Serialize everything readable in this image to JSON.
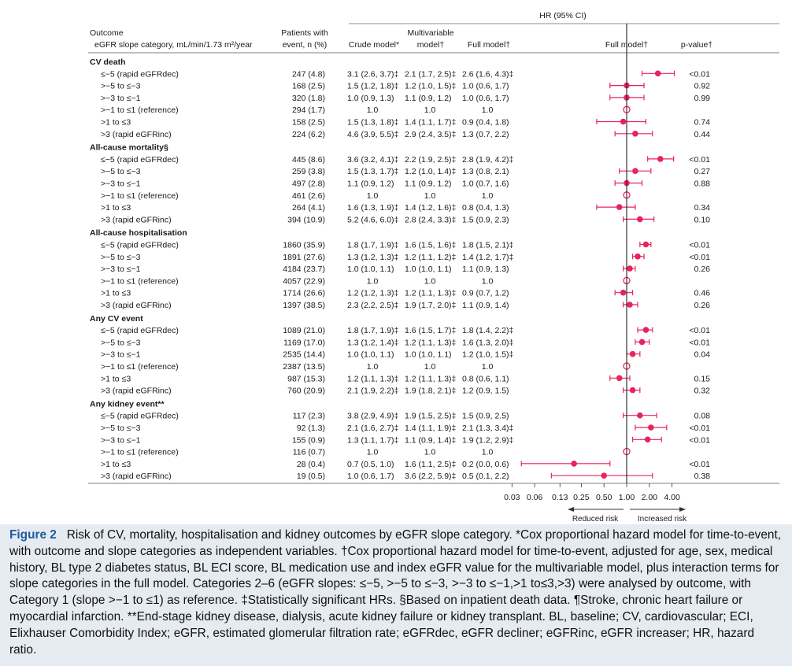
{
  "chart_data": {
    "type": "forest",
    "headers": {
      "outcome": "Outcome",
      "category": "eGFR slope category, mL/min/1.73 m²/year",
      "patients": [
        "Patients with",
        "event, n (%)"
      ],
      "hr_group": "HR (95% CI)",
      "crude": "Crude model*",
      "multivariable": [
        "Multivariable",
        "model†"
      ],
      "full": "Full model†",
      "plot": "Full model†",
      "pvalue": "p-value†"
    },
    "x_axis": {
      "scale": "log",
      "ticks": [
        0.03,
        0.06,
        0.13,
        0.25,
        0.5,
        1.0,
        2.0,
        4.0
      ],
      "tick_labels": [
        "0.03",
        "0.06",
        "0.13",
        "0.25",
        "0.50",
        "1.00",
        "2.00",
        "4.00"
      ],
      "xlim": [
        0.03,
        5.6
      ],
      "reference": 1.0,
      "left_label": "Reduced risk",
      "right_label": "Increased risk"
    },
    "marker_color": "#e8245c",
    "groups": [
      {
        "name": "CV death",
        "rows": [
          {
            "label": "≤−5 (rapid eGFRdec)",
            "n": "247 (4.8)",
            "crude": "3.1 (2.6, 3.7)‡",
            "multi": "2.1 (1.7, 2.5)‡",
            "full": "2.6 (1.6, 4.3)‡",
            "hr": 2.6,
            "lo": 1.6,
            "hi": 4.3,
            "p": "<0.01"
          },
          {
            "label": ">−5 to ≤−3",
            "n": "168 (2.5)",
            "crude": "1.5 (1.2, 1.8)‡",
            "multi": "1.2 (1.0, 1.5)‡",
            "full": "1.0 (0.6, 1.7)",
            "hr": 1.0,
            "lo": 0.6,
            "hi": 1.7,
            "p": "0.92"
          },
          {
            "label": ">−3 to ≤−1",
            "n": "320 (1.8)",
            "crude": "1.0 (0.9, 1.3)",
            "multi": "1.1 (0.9, 1.2)",
            "full": "1.0 (0.6, 1.7)",
            "hr": 1.0,
            "lo": 0.6,
            "hi": 1.7,
            "p": "0.99"
          },
          {
            "label": ">−1 to ≤1 (reference)",
            "n": "294 (1.7)",
            "crude": "1.0",
            "multi": "1.0",
            "full": "1.0",
            "hr": 1.0,
            "ref": true,
            "p": ""
          },
          {
            "label": ">1 to ≤3",
            "n": "158 (2.5)",
            "crude": "1.5 (1.3, 1.8)‡",
            "multi": "1.4 (1.1, 1.7)‡",
            "full": "0.9 (0.4, 1.8)",
            "hr": 0.9,
            "lo": 0.4,
            "hi": 1.8,
            "p": "0.74"
          },
          {
            "label": ">3 (rapid eGFRinc)",
            "n": "224 (6.2)",
            "crude": "4.6 (3.9, 5.5)‡",
            "multi": "2.9 (2.4, 3.5)‡",
            "full": "1.3 (0.7, 2.2)",
            "hr": 1.3,
            "lo": 0.7,
            "hi": 2.2,
            "p": "0.44"
          }
        ]
      },
      {
        "name": "All-cause mortality§",
        "rows": [
          {
            "label": "≤−5 (rapid eGFRdec)",
            "n": "445 (8.6)",
            "crude": "3.6 (3.2, 4.1)‡",
            "multi": "2.2 (1.9, 2.5)‡",
            "full": "2.8 (1.9, 4.2)‡",
            "hr": 2.8,
            "lo": 1.9,
            "hi": 4.2,
            "p": "<0.01"
          },
          {
            "label": ">−5 to ≤−3",
            "n": "259 (3.8)",
            "crude": "1.5 (1.3, 1.7)‡",
            "multi": "1.2 (1.0, 1.4)‡",
            "full": "1.3 (0.8, 2.1)",
            "hr": 1.3,
            "lo": 0.8,
            "hi": 2.1,
            "p": "0.27"
          },
          {
            "label": ">−3 to ≤−1",
            "n": "497 (2.8)",
            "crude": "1.1 (0.9, 1.2)",
            "multi": "1.1 (0.9, 1.2)",
            "full": "1.0 (0.7, 1.6)",
            "hr": 1.0,
            "lo": 0.7,
            "hi": 1.6,
            "p": "0.88"
          },
          {
            "label": ">−1 to ≤1 (reference)",
            "n": "461 (2.6)",
            "crude": "1.0",
            "multi": "1.0",
            "full": "1.0",
            "hr": 1.0,
            "ref": true,
            "p": ""
          },
          {
            "label": ">1 to ≤3",
            "n": "264 (4.1)",
            "crude": "1.6 (1.3, 1.9)‡",
            "multi": "1.4 (1.2, 1.6)‡",
            "full": "0.8 (0.4, 1.3)",
            "hr": 0.8,
            "lo": 0.4,
            "hi": 1.3,
            "p": "0.34"
          },
          {
            "label": ">3 (rapid eGFRinc)",
            "n": "394 (10.9)",
            "crude": "5.2 (4.6, 6.0)‡",
            "multi": "2.8 (2.4, 3.3)‡",
            "full": "1.5 (0.9, 2.3)",
            "hr": 1.5,
            "lo": 0.9,
            "hi": 2.3,
            "p": "0.10"
          }
        ]
      },
      {
        "name": "All-cause hospitalisation",
        "rows": [
          {
            "label": "≤−5 (rapid eGFRdec)",
            "n": "1860 (35.9)",
            "crude": "1.8 (1.7, 1.9)‡",
            "multi": "1.6 (1.5, 1.6)‡",
            "full": "1.8 (1.5, 2.1)‡",
            "hr": 1.8,
            "lo": 1.5,
            "hi": 2.1,
            "p": "<0.01"
          },
          {
            "label": ">−5 to ≤−3",
            "n": "1891 (27.6)",
            "crude": "1.3 (1.2, 1.3)‡",
            "multi": "1.2 (1.1, 1.2)‡",
            "full": "1.4 (1.2, 1.7)‡",
            "hr": 1.4,
            "lo": 1.2,
            "hi": 1.7,
            "p": "<0.01"
          },
          {
            "label": ">−3 to ≤−1",
            "n": "4184 (23.7)",
            "crude": "1.0 (1.0, 1.1)",
            "multi": "1.0 (1.0, 1.1)",
            "full": "1.1 (0.9, 1.3)",
            "hr": 1.1,
            "lo": 0.9,
            "hi": 1.3,
            "p": "0.26"
          },
          {
            "label": ">−1 to ≤1 (reference)",
            "n": "4057 (22.9)",
            "crude": "1.0",
            "multi": "1.0",
            "full": "1.0",
            "hr": 1.0,
            "ref": true,
            "p": ""
          },
          {
            "label": ">1 to ≤3",
            "n": "1714 (26.6)",
            "crude": "1.2 (1.2, 1.3)‡",
            "multi": "1.2 (1.1, 1.3)‡",
            "full": "0.9 (0.7, 1.2)",
            "hr": 0.9,
            "lo": 0.7,
            "hi": 1.2,
            "p": "0.46"
          },
          {
            "label": ">3 (rapid eGFRinc)",
            "n": "1397 (38.5)",
            "crude": "2.3 (2.2, 2.5)‡",
            "multi": "1.9 (1.7, 2.0)‡",
            "full": "1.1 (0.9, 1.4)",
            "hr": 1.1,
            "lo": 0.9,
            "hi": 1.4,
            "p": "0.26"
          }
        ]
      },
      {
        "name": "Any CV event",
        "rows": [
          {
            "label": "≤−5 (rapid eGFRdec)",
            "n": "1089 (21.0)",
            "crude": "1.8 (1.7, 1.9)‡",
            "multi": "1.6 (1.5, 1.7)‡",
            "full": "1.8 (1.4, 2.2)‡",
            "hr": 1.8,
            "lo": 1.4,
            "hi": 2.2,
            "p": "<0.01"
          },
          {
            "label": ">−5 to ≤−3",
            "n": "1169 (17.0)",
            "crude": "1.3 (1.2, 1.4)‡",
            "multi": "1.2 (1.1, 1.3)‡",
            "full": "1.6 (1.3, 2.0)‡",
            "hr": 1.6,
            "lo": 1.3,
            "hi": 2.0,
            "p": "<0.01"
          },
          {
            "label": ">−3 to ≤−1",
            "n": "2535 (14.4)",
            "crude": "1.0 (1.0, 1.1)",
            "multi": "1.0 (1.0, 1.1)",
            "full": "1.2 (1.0, 1.5)‡",
            "hr": 1.2,
            "lo": 1.0,
            "hi": 1.5,
            "p": "0.04"
          },
          {
            "label": ">−1 to ≤1 (reference)",
            "n": "2387 (13.5)",
            "crude": "1.0",
            "multi": "1.0",
            "full": "1.0",
            "hr": 1.0,
            "ref": true,
            "p": ""
          },
          {
            "label": ">1 to ≤3",
            "n": "987 (15.3)",
            "crude": "1.2 (1.1, 1.3)‡",
            "multi": "1.2 (1.1, 1.3)‡",
            "full": "0.8 (0.6, 1.1)",
            "hr": 0.8,
            "lo": 0.6,
            "hi": 1.1,
            "p": "0.15"
          },
          {
            "label": ">3 (rapid eGFRinc)",
            "n": "760 (20.9)",
            "crude": "2.1 (1.9, 2.2)‡",
            "multi": "1.9 (1.8, 2.1)‡",
            "full": "1.2 (0.9, 1.5)",
            "hr": 1.2,
            "lo": 0.9,
            "hi": 1.5,
            "p": "0.32"
          }
        ]
      },
      {
        "name": "Any kidney event**",
        "rows": [
          {
            "label": "≤−5 (rapid eGFRdec)",
            "n": "117 (2.3)",
            "crude": "3.8 (2.9, 4.9)‡",
            "multi": "1.9 (1.5, 2.5)‡",
            "full": "1.5 (0.9, 2.5)",
            "hr": 1.5,
            "lo": 0.9,
            "hi": 2.5,
            "p": "0.08"
          },
          {
            "label": ">−5 to ≤−3",
            "n": "92 (1.3)",
            "crude": "2.1 (1.6, 2.7)‡",
            "multi": "1.4 (1.1, 1.9)‡",
            "full": "2.1 (1.3, 3.4)‡",
            "hr": 2.1,
            "lo": 1.3,
            "hi": 3.4,
            "p": "<0.01"
          },
          {
            "label": ">−3 to ≤−1",
            "n": "155 (0.9)",
            "crude": "1.3 (1.1, 1.7)‡",
            "multi": "1.1 (0.9, 1.4)‡",
            "full": "1.9 (1.2, 2.9)‡",
            "hr": 1.9,
            "lo": 1.2,
            "hi": 2.9,
            "p": "<0.01"
          },
          {
            "label": ">−1 to ≤1 (reference)",
            "n": "116 (0.7)",
            "crude": "1.0",
            "multi": "1.0",
            "full": "1.0",
            "hr": 1.0,
            "ref": true,
            "p": ""
          },
          {
            "label": ">1 to ≤3",
            "n": "28 (0.4)",
            "crude": "0.7 (0.5, 1.0)",
            "multi": "1.6 (1.1, 2.5)‡",
            "full": "0.2 (0.0, 0.6)",
            "hr": 0.2,
            "lo": 0.04,
            "hi": 0.6,
            "p": "<0.01"
          },
          {
            "label": ">3 (rapid eGFRinc)",
            "n": "19 (0.5)",
            "crude": "1.0 (0.6, 1.7)",
            "multi": "3.6 (2.2, 5.9)‡",
            "full": "0.5 (0.1, 2.2)",
            "hr": 0.5,
            "lo": 0.1,
            "hi": 2.2,
            "p": "0.38"
          }
        ]
      }
    ]
  },
  "caption": {
    "label": "Figure 2",
    "text": "Risk of CV, mortality, hospitalisation and kidney outcomes by eGFR slope category. *Cox proportional hazard model for time-to-event, with outcome and slope categories as independent variables. †Cox proportional hazard model for time-to-event, adjusted for age, sex, medical history, BL type 2 diabetes status, BL ECI score, BL medication use and index eGFR value for the multivariable model, plus interaction terms for slope categories in the full model. Categories 2–6 (eGFR slopes: ≤−5, >−5 to ≤−3, >−3 to ≤−1,>1 to≤3,>3) were analysed by outcome, with Category 1 (slope >−1 to ≤1) as reference. ‡Statistically significant HRs. §Based on inpatient death data. ¶Stroke, chronic heart failure or myocardial infarction. **End-stage kidney disease, dialysis, acute kidney failure or kidney transplant. BL, baseline; CV, cardiovascular; ECI, Elixhauser Comorbidity Index; eGFR, estimated glomerular filtration rate; eGFRdec, eGFR decliner; eGFRinc, eGFR increaser; HR, hazard ratio."
  }
}
